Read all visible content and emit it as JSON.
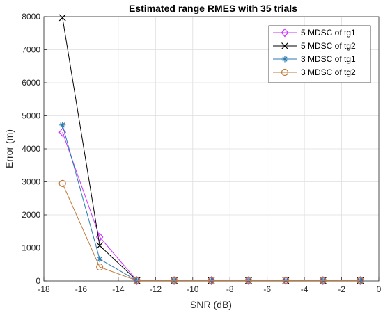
{
  "chart_data": {
    "type": "line",
    "title": "Estimated range RMES with 35 trials",
    "xlabel": "SNR (dB)",
    "ylabel": "Error (m)",
    "xlim": [
      -18,
      0
    ],
    "ylim": [
      0,
      8000
    ],
    "xticks": [
      -18,
      -16,
      -14,
      -12,
      -10,
      -8,
      -6,
      -4,
      -2,
      0
    ],
    "yticks": [
      0,
      1000,
      2000,
      3000,
      4000,
      5000,
      6000,
      7000,
      8000
    ],
    "grid": true,
    "legend_position": "top-right",
    "x": [
      -17,
      -15,
      -13,
      -11,
      -9,
      -7,
      -5,
      -3,
      -1
    ],
    "series": [
      {
        "name": "5 MDSC of tg1",
        "color": "#cc33ff",
        "marker": "diamond",
        "values": [
          4500,
          1330,
          10,
          10,
          10,
          10,
          10,
          10,
          10
        ]
      },
      {
        "name": "5 MDSC of tg2",
        "color": "#000000",
        "marker": "x",
        "values": [
          7970,
          1070,
          10,
          10,
          10,
          10,
          10,
          10,
          10
        ]
      },
      {
        "name": "3 MDSC of tg1",
        "color": "#2a7ab0",
        "marker": "asterisk",
        "values": [
          4720,
          660,
          10,
          10,
          10,
          10,
          10,
          10,
          10
        ]
      },
      {
        "name": "3 MDSC of tg2",
        "color": "#c07a3a",
        "marker": "circle",
        "values": [
          2950,
          420,
          10,
          10,
          10,
          10,
          10,
          10,
          10
        ]
      }
    ]
  }
}
